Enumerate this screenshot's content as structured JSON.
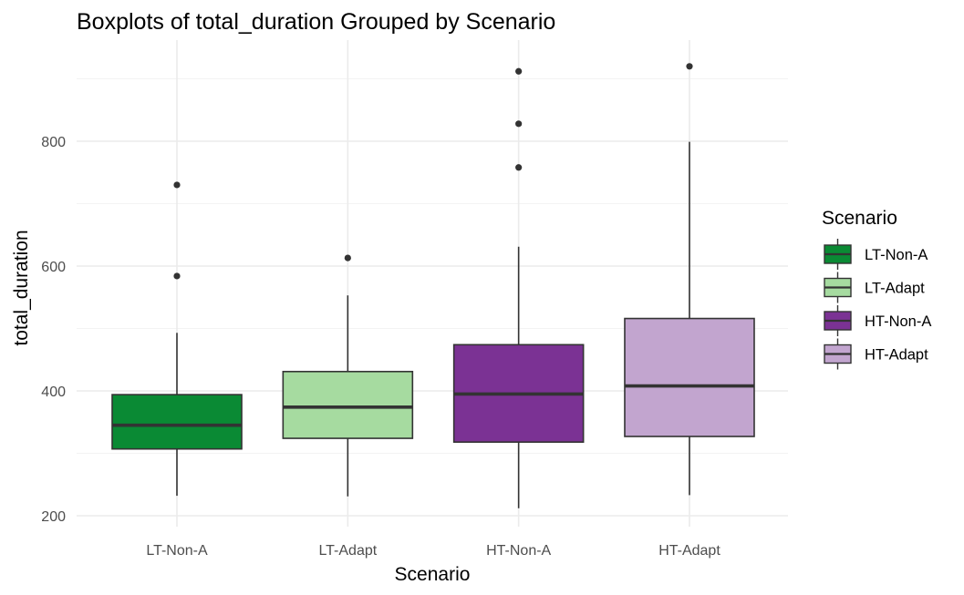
{
  "chart_data": {
    "type": "boxplot",
    "title": "Boxplots of total_duration Grouped by Scenario",
    "xlabel": "Scenario",
    "ylabel": "total_duration",
    "ylim": [
      195,
      940
    ],
    "yticks": [
      200,
      400,
      600,
      800
    ],
    "grid": true,
    "legend": {
      "title": "Scenario",
      "placement": "right"
    },
    "categories": [
      "LT-Non-A",
      "LT-Adapt",
      "HT-Non-A",
      "HT-Adapt"
    ],
    "boxes": [
      {
        "name": "LT-Non-A",
        "color": "#0A8A34",
        "whisker_low": 232,
        "q1": 307,
        "median": 345,
        "q3": 394,
        "whisker_high": 493,
        "outliers": [
          584,
          730
        ]
      },
      {
        "name": "LT-Adapt",
        "color": "#A6DBA0",
        "whisker_low": 231,
        "q1": 324,
        "median": 374,
        "q3": 431,
        "whisker_high": 553,
        "outliers": [
          613
        ]
      },
      {
        "name": "HT-Non-A",
        "color": "#7B3294",
        "whisker_low": 212,
        "q1": 318,
        "median": 395,
        "q3": 474,
        "whisker_high": 631,
        "outliers": [
          758,
          828,
          912
        ]
      },
      {
        "name": "HT-Adapt",
        "color": "#C2A5CF",
        "whisker_low": 233,
        "q1": 327,
        "median": 408,
        "q3": 516,
        "whisker_high": 799,
        "outliers": [
          920
        ]
      }
    ]
  }
}
